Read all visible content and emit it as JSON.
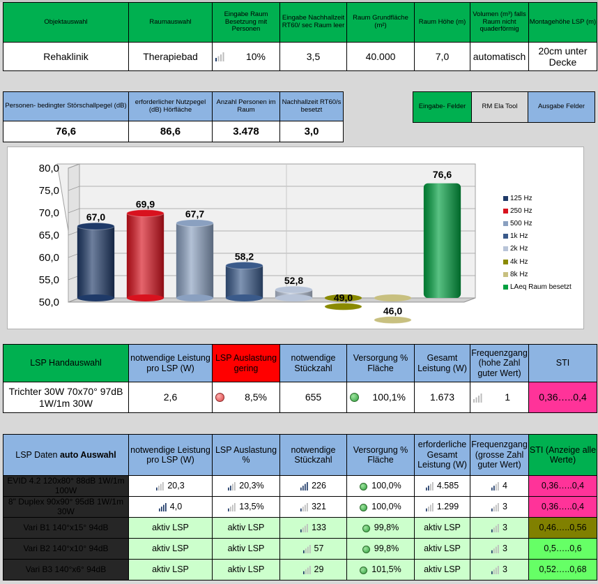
{
  "input_table": {
    "headers": [
      "Objektauswahl",
      "Raumauswahl",
      "Eingabe Raum Besetzung mit Personen",
      "Eingabe Nachhallzeit RT60/ sec Raum leer",
      "Raum Grundfläche (m²)",
      "Raum Höhe (m)",
      "Volumen (m³) falls Raum nicht quaderförmig",
      "Montagehöhe LSP (m)"
    ],
    "values": [
      "Rehaklinik",
      "Therapiebad",
      "10%",
      "3,5",
      "40.000",
      "7,0",
      "automatisch",
      "20cm unter Decke"
    ]
  },
  "output_table": {
    "headers": [
      "Personen- bedingter Störschallpegel (dB)",
      "erforderlicher Nutzpegel (dB) Hörfläche",
      "Anzahl Personen im Raum",
      "Nachhallzeit RT60/s besetzt"
    ],
    "values": [
      "76,6",
      "86,6",
      "3.478",
      "3,0"
    ]
  },
  "legend_boxes": {
    "input": "Eingabe- Felder",
    "tool": "RM Ela Tool",
    "output": "Ausgabe Felder"
  },
  "chart_data": {
    "type": "bar",
    "categories": [
      "125 Hz",
      "250 Hz",
      "500 Hz",
      "1k Hz",
      "2k Hz",
      "4k Hz",
      "8k Hz",
      "LAeq Raum besetzt"
    ],
    "values": [
      67.0,
      69.9,
      67.7,
      58.2,
      52.8,
      49.0,
      46.0,
      76.6
    ],
    "value_labels": [
      "67,0",
      "69,9",
      "67,7",
      "58,2",
      "52,8",
      "49,0",
      "46,0",
      "76,6"
    ],
    "colors": [
      "#1f3a68",
      "#d8121e",
      "#8aa0c0",
      "#3a5a8a",
      "#b8c4d8",
      "#8a8a00",
      "#c8c080",
      "#00a040"
    ],
    "ylim": [
      50,
      80
    ],
    "yticks": [
      "50,0",
      "55,0",
      "60,0",
      "65,0",
      "70,0",
      "75,0",
      "80,0"
    ],
    "grid": true,
    "legend": "right"
  },
  "manual_table": {
    "headers": [
      "LSP Handauswahl",
      "notwendige Leistung pro LSP (W)",
      "LSP Auslastung gering",
      "notwendige Stückzahl",
      "Versorgung % Fläche",
      "Gesamt Leistung (W)",
      "Frequenzgang (hohe Zahl guter Wert)",
      "STI"
    ],
    "values": [
      "Trichter 30W  70x70° 97dB 1W/1m  30W",
      "2,6",
      "8,5%",
      "655",
      "100,1%",
      "1.673",
      "1",
      "0,36…..0,4"
    ]
  },
  "auto_table": {
    "headers": [
      "LSP Daten ",
      "auto Auswahl",
      "notwendige Leistung pro LSP (W)",
      "LSP Auslastung %",
      "notwendige Stückzahl",
      "Versorgung % Fläche",
      "erforderliche Gesamt Leistung (W)",
      "Frequenzgang (grosse Zahl guter Wert)",
      "STI  (Anzeige alle Werte)"
    ],
    "rows": [
      [
        "EVID 4.2  120x80°  88dB 1W/1m  100W",
        "20,3",
        "20,3%",
        "226",
        "100,0%",
        "4.585",
        "4",
        "0,36…..0,4"
      ],
      [
        "8\" Duplex  90x90°  95dB 1W/1m  30W",
        "4,0",
        "13,5%",
        "321",
        "100,0%",
        "1.299",
        "3",
        "0,36…..0,4"
      ],
      [
        "Vari B1 140°x15° 94dB",
        "aktiv LSP",
        "aktiv LSP",
        "133",
        "99,8%",
        "aktiv LSP",
        "3",
        "0,46…..0,56"
      ],
      [
        "Vari B2 140°x10° 94dB",
        "aktiv LSP",
        "aktiv LSP",
        "57",
        "99,8%",
        "aktiv LSP",
        "3",
        "0,5…..0,6"
      ],
      [
        "Vari B3 140°x6° 94dB",
        "aktiv LSP",
        "aktiv LSP",
        "29",
        "101,5%",
        "aktiv LSP",
        "3",
        "0,52…..0,68"
      ]
    ]
  }
}
